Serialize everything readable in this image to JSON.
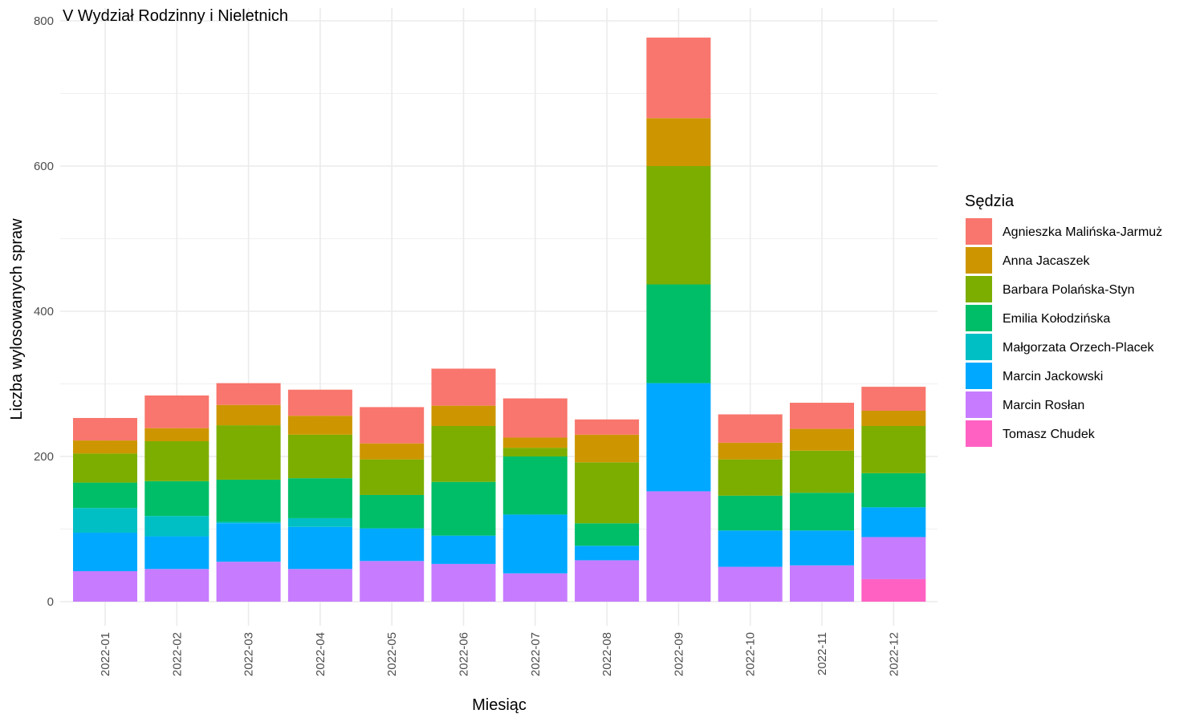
{
  "chart_data": {
    "type": "bar",
    "stacked": true,
    "title": "V Wydział Rodzinny i Nieletnich",
    "xlabel": "Miesiąc",
    "ylabel": "Liczba wylosowanych spraw",
    "ylim": [
      0,
      800
    ],
    "yticks": [
      0,
      200,
      400,
      600,
      800
    ],
    "grid": true,
    "legend_title": "Sędzia",
    "legend_position": "right",
    "categories": [
      "2022-01",
      "2022-02",
      "2022-03",
      "2022-04",
      "2022-05",
      "2022-06",
      "2022-07",
      "2022-08",
      "2022-09",
      "2022-10",
      "2022-11",
      "2022-12"
    ],
    "series": [
      {
        "name": "Tomasz Chudek",
        "color": "#FF61C3",
        "values": [
          0,
          0,
          0,
          0,
          0,
          0,
          0,
          0,
          0,
          0,
          0,
          31
        ]
      },
      {
        "name": "Marcin Rosłan",
        "color": "#C77CFF",
        "values": [
          42,
          45,
          55,
          45,
          56,
          52,
          39,
          57,
          152,
          48,
          50,
          58
        ]
      },
      {
        "name": "Marcin Jackowski",
        "color": "#00A9FF",
        "values": [
          53,
          45,
          53,
          58,
          45,
          39,
          81,
          20,
          149,
          50,
          48,
          41
        ]
      },
      {
        "name": "Małgorzata Orzech-Placek",
        "color": "#00BFC4",
        "values": [
          34,
          28,
          2,
          12,
          0,
          0,
          0,
          0,
          0,
          0,
          0,
          0
        ]
      },
      {
        "name": "Emilia Kołodzińska",
        "color": "#00BE67",
        "values": [
          35,
          48,
          58,
          55,
          46,
          74,
          80,
          31,
          136,
          48,
          52,
          47
        ]
      },
      {
        "name": "Barbara Polańska-Styn",
        "color": "#7CAE00",
        "values": [
          40,
          55,
          75,
          60,
          49,
          77,
          12,
          84,
          163,
          50,
          58,
          65
        ]
      },
      {
        "name": "Anna Jacaszek",
        "color": "#CD9600",
        "values": [
          18,
          18,
          28,
          26,
          22,
          28,
          14,
          38,
          66,
          23,
          30,
          21
        ]
      },
      {
        "name": "Agnieszka Malińska-Jarmuż",
        "color": "#F8766D",
        "values": [
          31,
          45,
          30,
          36,
          50,
          51,
          54,
          21,
          111,
          39,
          36,
          33
        ]
      }
    ]
  }
}
